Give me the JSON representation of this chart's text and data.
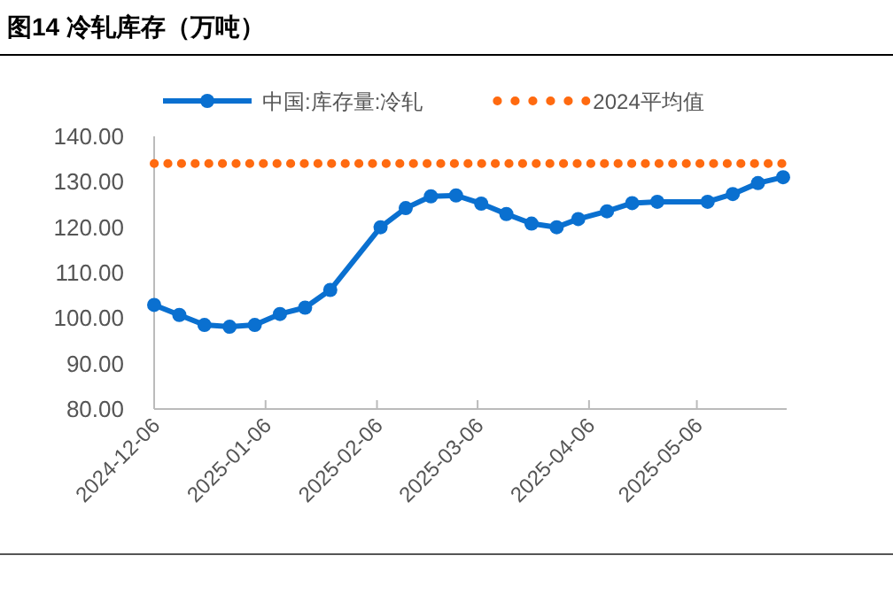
{
  "chart_data": {
    "type": "line",
    "title": "图14 冷轧库存（万吨）",
    "x": [
      "2024-12-06",
      "2024-12-13",
      "2024-12-20",
      "2024-12-27",
      "2025-01-03",
      "2025-01-10",
      "2025-01-17",
      "2025-01-24",
      "2025-02-07",
      "2025-02-14",
      "2025-02-21",
      "2025-02-28",
      "2025-03-07",
      "2025-03-14",
      "2025-03-21",
      "2025-03-28",
      "2025-04-03",
      "2025-04-11",
      "2025-04-18",
      "2025-04-25",
      "2025-05-09",
      "2025-05-16",
      "2025-05-23",
      "2025-05-30"
    ],
    "series": [
      {
        "name": "中国:库存量:冷轧",
        "color": "#0a70d0",
        "values": [
          102.9,
          100.7,
          98.5,
          98.1,
          98.5,
          100.9,
          102.3,
          106.2,
          120.0,
          124.2,
          126.8,
          127.0,
          125.2,
          122.9,
          120.8,
          120.0,
          121.8,
          123.5,
          125.3,
          125.6,
          125.6,
          127.3,
          129.7,
          131.0
        ]
      }
    ],
    "ref_lines": [
      {
        "axis": "y",
        "value": 134.0,
        "label": "2024平均值",
        "color": "#ff6a10",
        "line_style": "dotted"
      }
    ],
    "xlim": [
      "2024-12-06",
      "2025-05-31"
    ],
    "xticks": [
      "2024-12-06",
      "2025-01-06",
      "2025-02-06",
      "2025-03-06",
      "2025-04-06",
      "2025-05-06"
    ],
    "ylim": [
      80,
      140
    ],
    "yticks": [
      {
        "value": 80,
        "label": "80.00"
      },
      {
        "value": 90,
        "label": "90.00"
      },
      {
        "value": 100,
        "label": "100.00"
      },
      {
        "value": 110,
        "label": "110.00"
      },
      {
        "value": 120,
        "label": "120.00"
      },
      {
        "value": 130,
        "label": "130.00"
      },
      {
        "value": 140,
        "label": "140.00"
      }
    ],
    "grid": false,
    "legend": "top",
    "marker": "circle",
    "line_style": "solid"
  }
}
